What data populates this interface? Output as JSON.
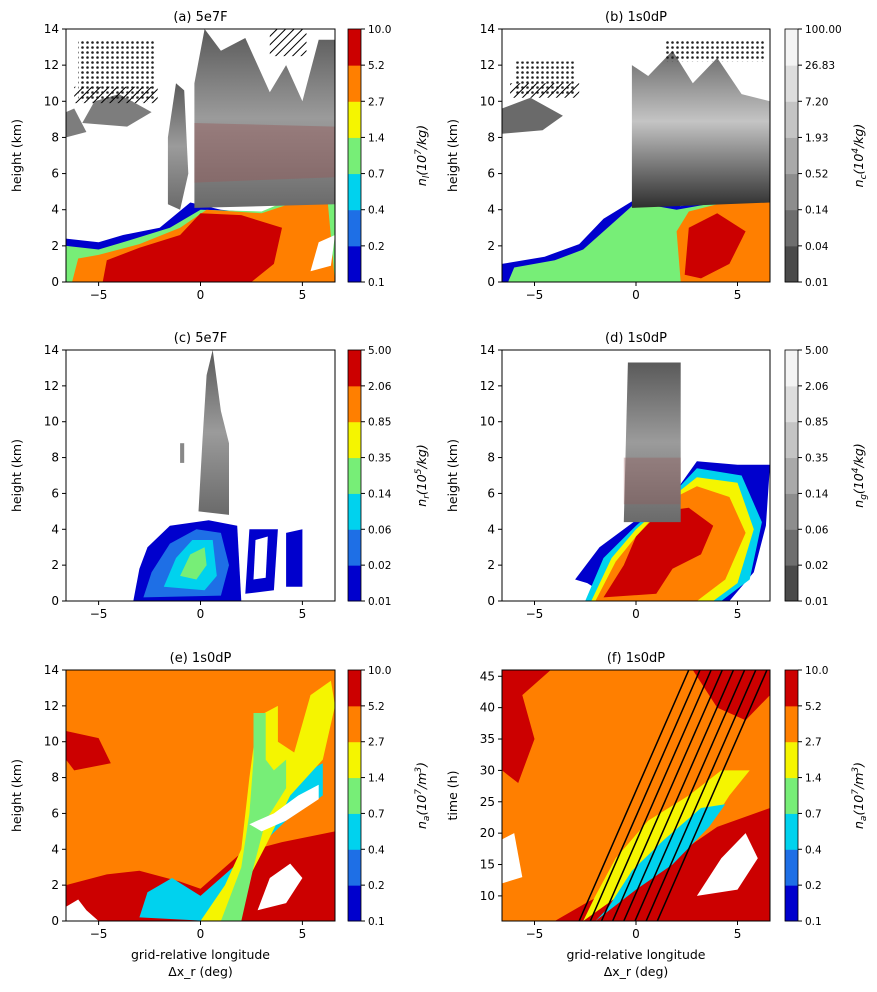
{
  "chart_data": [
    {
      "id": "a",
      "title": "(a) 5e7F",
      "type": "heatmap",
      "ylabel": "height (km)",
      "xlabel": "",
      "xlim": [
        -6.6,
        6.6
      ],
      "ylim": [
        0,
        14
      ],
      "xticks": [
        -5,
        0,
        5
      ],
      "yticks": [
        0,
        2,
        4,
        6,
        8,
        10,
        12,
        14
      ],
      "colorbar": {
        "label": "n_l(10^7/kg)",
        "label_parts": [
          "n",
          "l",
          "(10",
          "7",
          "/kg)"
        ],
        "cmap": "jet",
        "ticks": [
          "0.1",
          "0.2",
          "0.4",
          "0.7",
          "1.4",
          "2.7",
          "5.2",
          "10.0"
        ]
      },
      "overlay": "gray cloud-ice contours with hatched regions above 10 km"
    },
    {
      "id": "b",
      "title": "(b) 1s0dP",
      "type": "heatmap",
      "ylabel": "height (km)",
      "xlabel": "",
      "xlim": [
        -6.6,
        6.6
      ],
      "ylim": [
        0,
        14
      ],
      "xticks": [
        -5,
        0,
        5
      ],
      "yticks": [
        0,
        2,
        4,
        6,
        8,
        10,
        12,
        14
      ],
      "colorbar": {
        "label": "n_c(10^4/kg)",
        "label_parts": [
          "n",
          "c",
          "(10",
          "4",
          "/kg)"
        ],
        "cmap": "gray",
        "ticks": [
          "0.01",
          "0.04",
          "0.14",
          "0.52",
          "1.93",
          "7.20",
          "26.83",
          "100.00"
        ]
      }
    },
    {
      "id": "c",
      "title": "(c) 5e7F",
      "type": "heatmap",
      "ylabel": "height (km)",
      "xlabel": "",
      "xlim": [
        -6.6,
        6.6
      ],
      "ylim": [
        0,
        14
      ],
      "xticks": [
        -5,
        0,
        5
      ],
      "yticks": [
        0,
        2,
        4,
        6,
        8,
        10,
        12,
        14
      ],
      "colorbar": {
        "label": "n_r(10^5/kg)",
        "label_parts": [
          "n",
          "r",
          "(10",
          "5",
          "/kg)"
        ],
        "cmap": "jet",
        "ticks": [
          "0.01",
          "0.02",
          "0.06",
          "0.14",
          "0.35",
          "0.85",
          "2.06",
          "5.00"
        ]
      }
    },
    {
      "id": "d",
      "title": "(d) 1s0dP",
      "type": "heatmap",
      "ylabel": "height (km)",
      "xlabel": "",
      "xlim": [
        -6.6,
        6.6
      ],
      "ylim": [
        0,
        14
      ],
      "xticks": [
        -5,
        0,
        5
      ],
      "yticks": [
        0,
        2,
        4,
        6,
        8,
        10,
        12,
        14
      ],
      "colorbar": {
        "label": "n_g(10^4/kg)",
        "label_parts": [
          "n",
          "g",
          "(10",
          "4",
          "/kg)"
        ],
        "cmap": "gray",
        "ticks": [
          "0.01",
          "0.02",
          "0.06",
          "0.14",
          "0.35",
          "0.85",
          "2.06",
          "5.00"
        ]
      }
    },
    {
      "id": "e",
      "title": "(e) 1s0dP",
      "type": "heatmap",
      "ylabel": "height (km)",
      "xlabel": "grid-relative longitude",
      "xlabel2": "Δx_r (deg)",
      "xlim": [
        -6.6,
        6.6
      ],
      "ylim": [
        0,
        14
      ],
      "xticks": [
        -5,
        0,
        5
      ],
      "yticks": [
        0,
        2,
        4,
        6,
        8,
        10,
        12,
        14
      ],
      "colorbar": {
        "label": "n_a(10^7/m^3)",
        "label_parts": [
          "n",
          "a",
          "(10",
          "7",
          "/m",
          "3",
          ")"
        ],
        "cmap": "jet",
        "ticks": [
          "0.1",
          "0.2",
          "0.4",
          "0.7",
          "1.4",
          "2.7",
          "5.2",
          "10.0"
        ]
      }
    },
    {
      "id": "f",
      "title": "(f) 1s0dP",
      "type": "heatmap",
      "ylabel": "time (h)",
      "xlabel": "grid-relative longitude",
      "xlabel2": "Δx_r (deg)",
      "xlim": [
        -6.6,
        6.6
      ],
      "ylim": [
        6,
        46
      ],
      "xticks": [
        -5,
        0,
        5
      ],
      "yticks": [
        10,
        15,
        20,
        25,
        30,
        35,
        40,
        45
      ],
      "colorbar": {
        "label": "n_a(10^7/m^3)",
        "label_parts": [
          "n",
          "a",
          "(10",
          "7",
          "/m",
          "3",
          ")"
        ],
        "cmap": "jet",
        "ticks": [
          "0.1",
          "0.2",
          "0.4",
          "0.7",
          "1.4",
          "2.7",
          "5.2",
          "10.0"
        ]
      },
      "overlay": "black diagonal hatched lines"
    }
  ],
  "colors": {
    "jet": [
      "#0000cd",
      "#1e6fe6",
      "#00d2ee",
      "#77ee77",
      "#f5f500",
      "#ff7f00",
      "#cc0000"
    ],
    "gray": [
      "#4a4a4a",
      "#6e6e6e",
      "#8d8d8d",
      "#a9a9a9",
      "#c4c4c4",
      "#dddddd",
      "#f4f4f4"
    ]
  }
}
